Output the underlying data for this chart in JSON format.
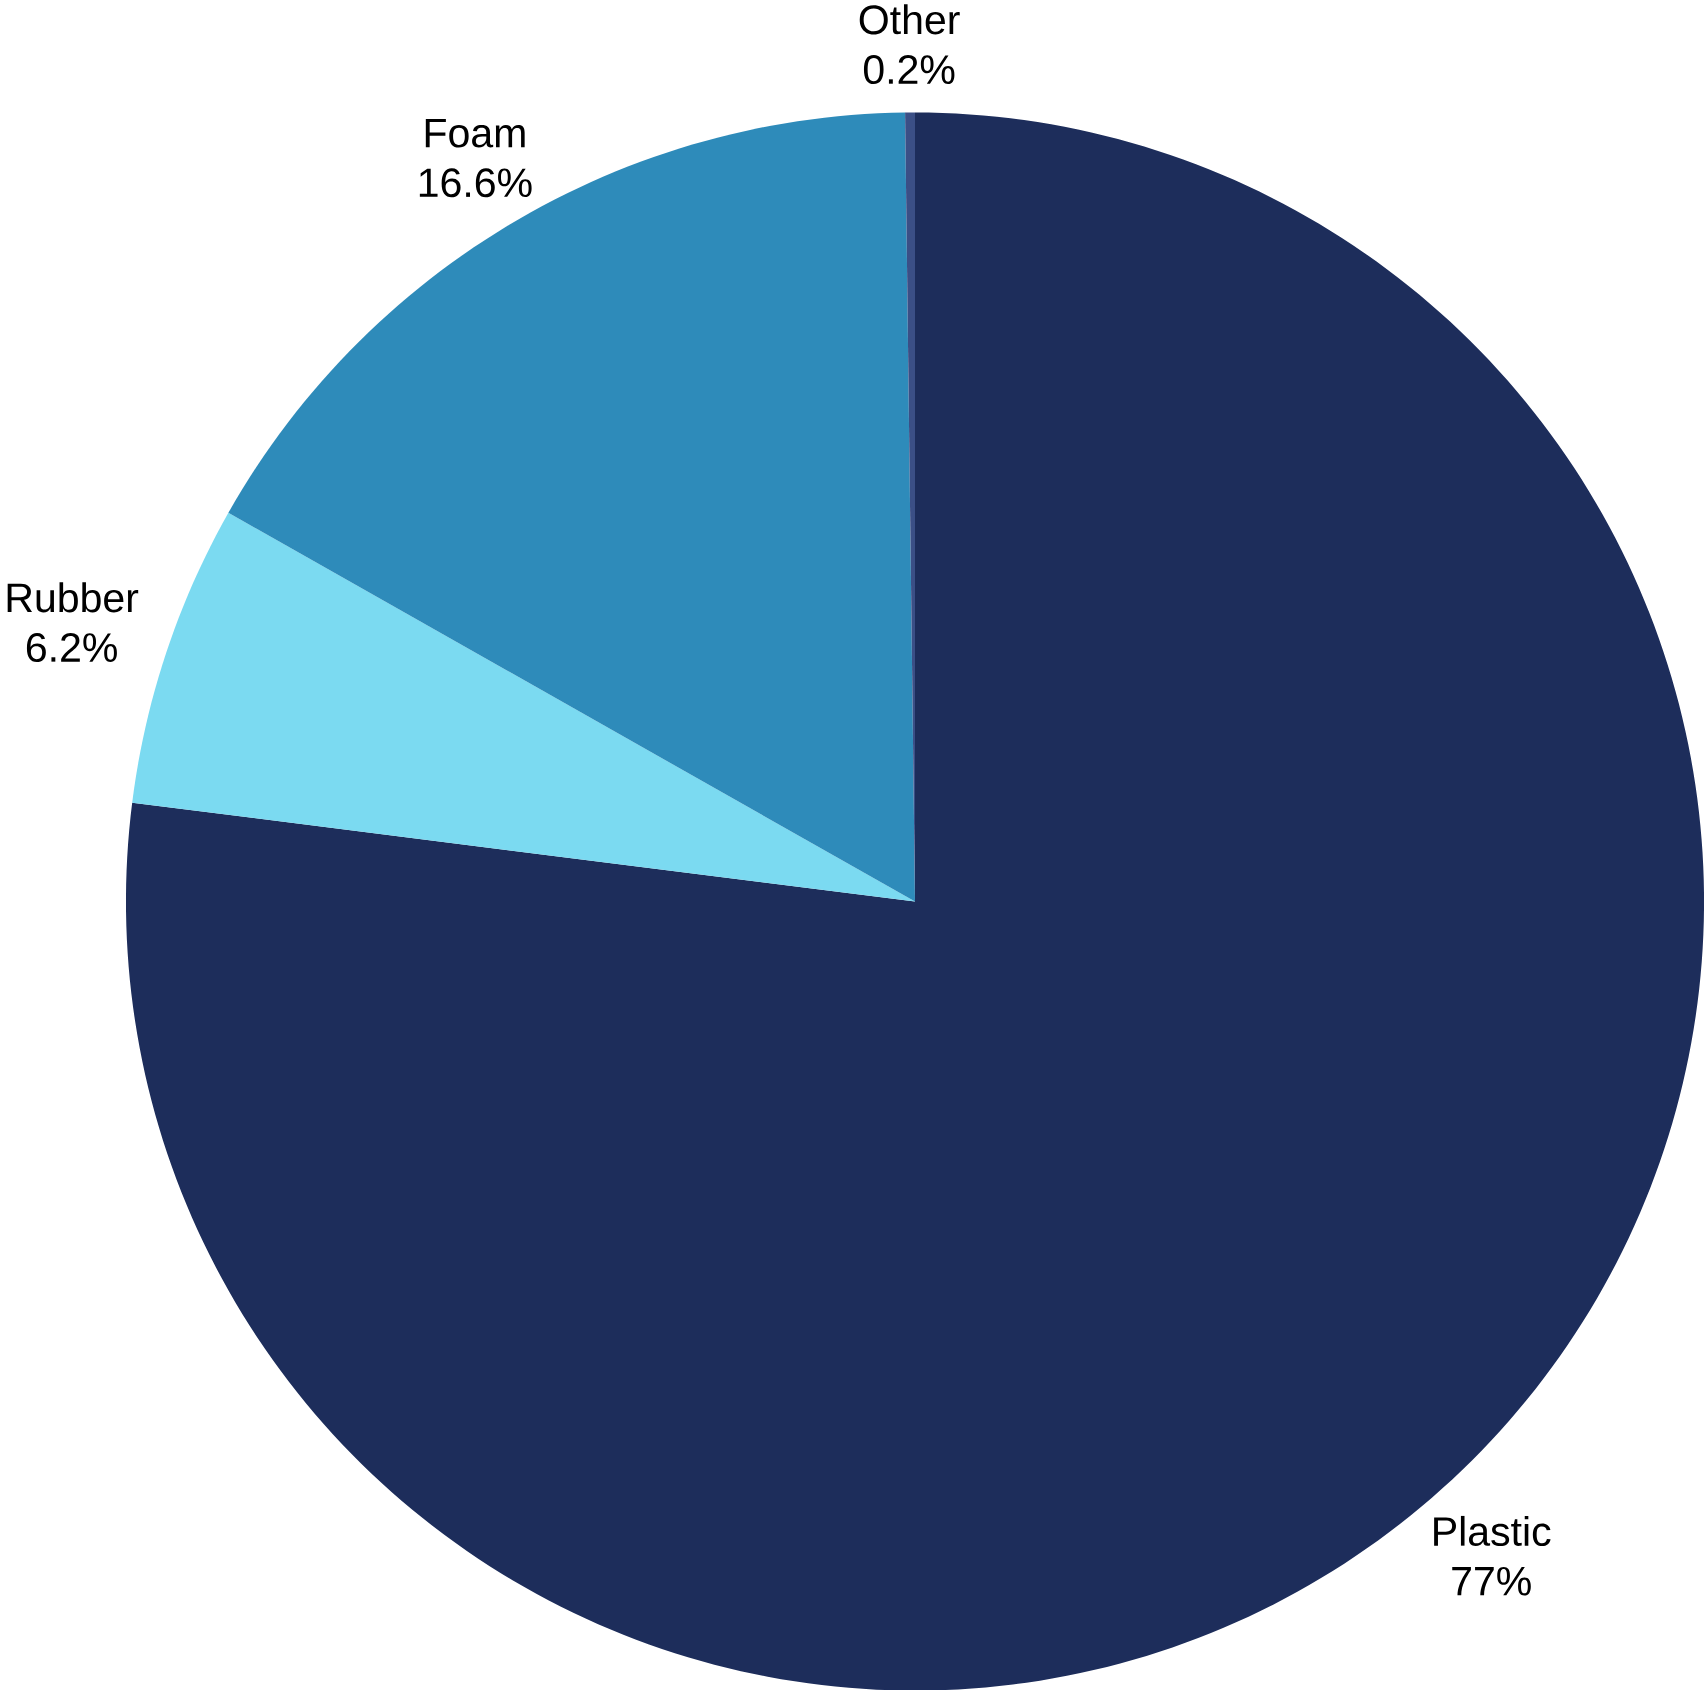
{
  "chart_data": {
    "type": "pie",
    "categories": [
      "Plastic",
      "Rubber",
      "Foam",
      "Other"
    ],
    "values": [
      77,
      6.2,
      16.6,
      0.2
    ],
    "value_labels": [
      "77%",
      "6.2%",
      "16.6%",
      "0.2%"
    ],
    "colors": [
      "#1d2d5b",
      "#7bdaf1",
      "#2e8bba",
      "#3b4f86"
    ]
  }
}
